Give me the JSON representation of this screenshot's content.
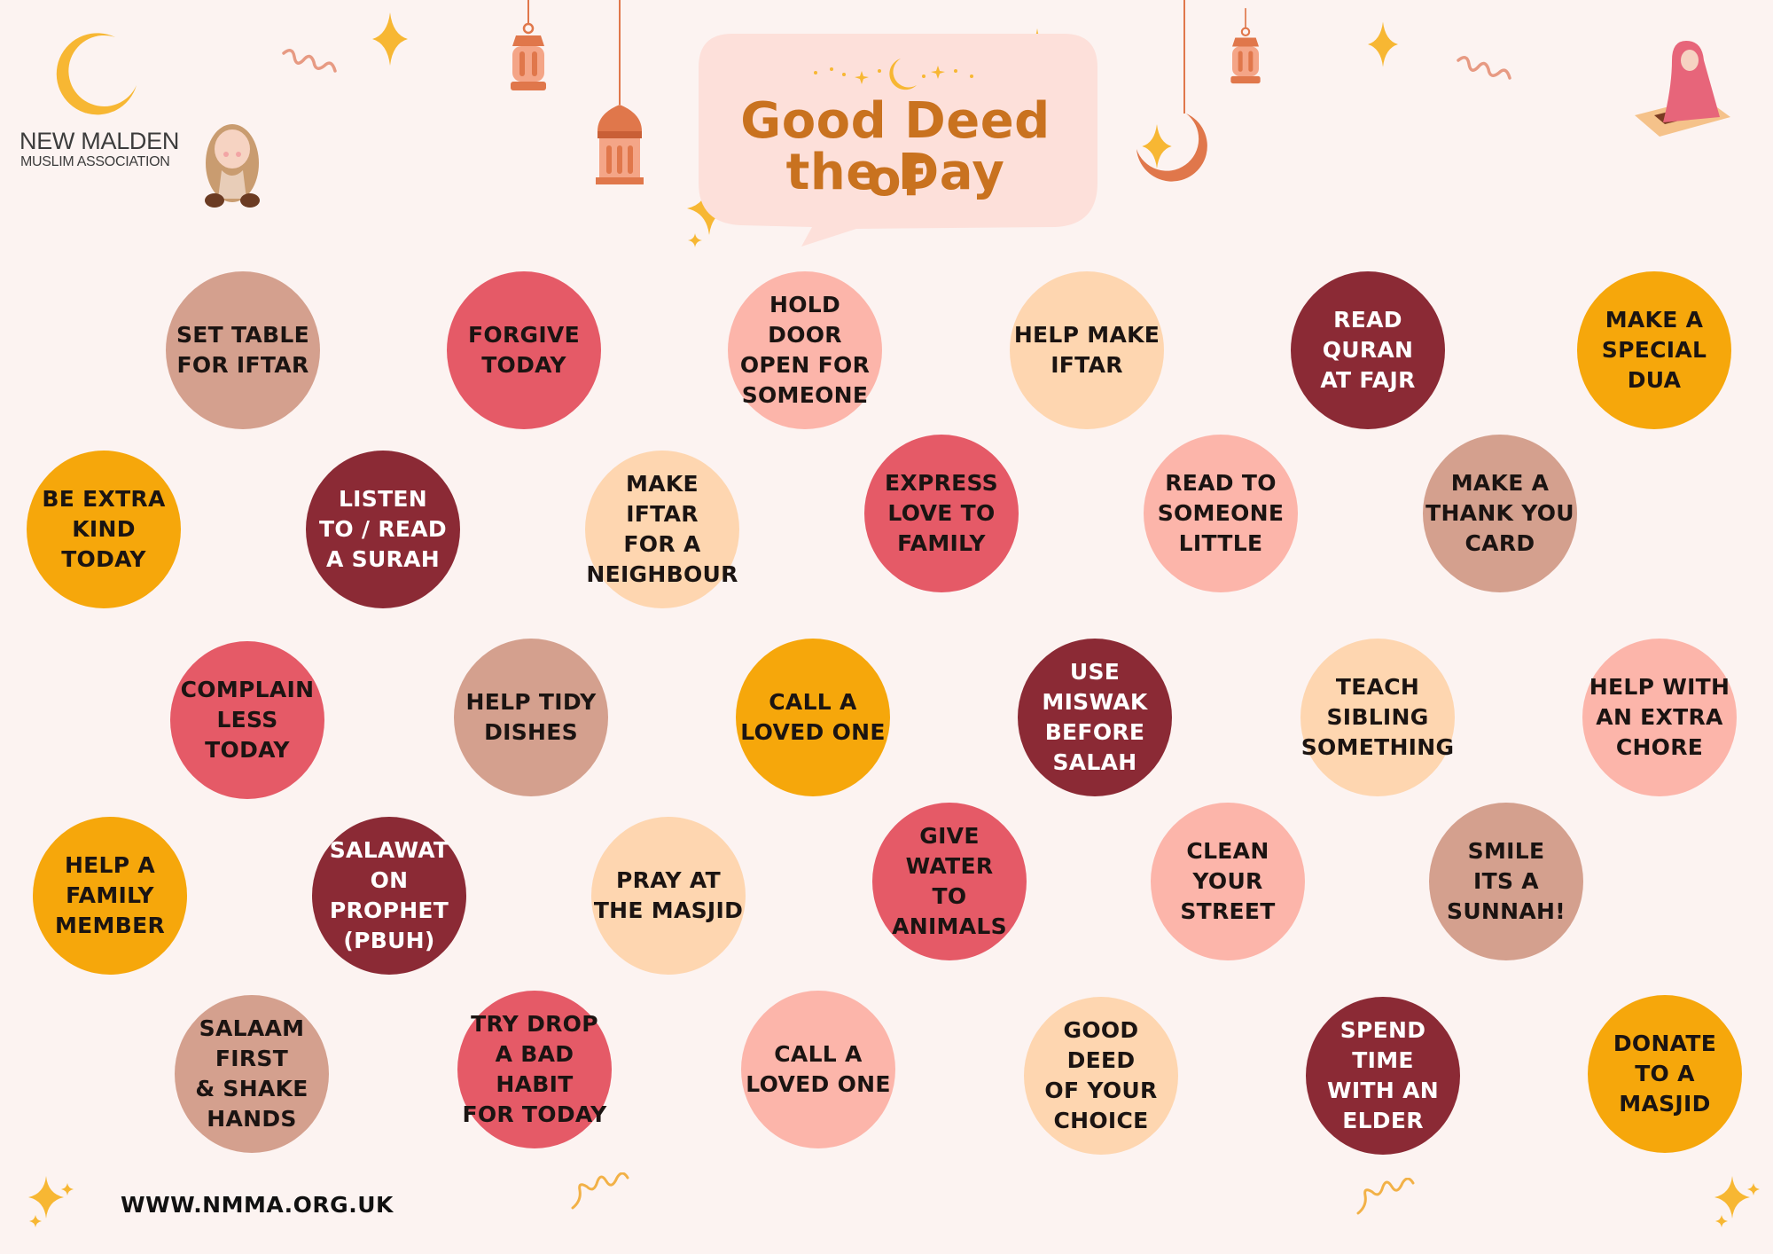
{
  "organization": {
    "name_line1": "NEW MALDEN",
    "name_line2": "MUSLIM ASSOCIATION"
  },
  "title": {
    "line1": "Good Deed of",
    "line2": "the Day"
  },
  "website": "WWW.NMMA.ORG.UK",
  "colors": {
    "background": "#fcf3f1",
    "title": "#c9721f",
    "speech_bubble": "#fde0da",
    "tan": "#d4a08e",
    "coral": "#e55a67",
    "pink": "#fcb5aa",
    "peach": "#fed6b0",
    "maroon": "#8b2a35",
    "amber": "#f6a70b",
    "sparkle": "#f7b733",
    "lantern": "#e0774b"
  },
  "deeds": [
    {
      "lines": [
        "SET TABLE",
        "FOR IFTAR"
      ],
      "color": "tan"
    },
    {
      "lines": [
        "FORGIVE",
        "TODAY"
      ],
      "color": "coral"
    },
    {
      "lines": [
        "HOLD DOOR",
        "OPEN FOR",
        "SOMEONE"
      ],
      "color": "pink"
    },
    {
      "lines": [
        "HELP MAKE",
        "IFTAR"
      ],
      "color": "peach"
    },
    {
      "lines": [
        "READ",
        "QURAN",
        "AT FAJR"
      ],
      "color": "maroon"
    },
    {
      "lines": [
        "MAKE A",
        "SPECIAL",
        "DUA"
      ],
      "color": "amber"
    },
    {
      "lines": [
        "BE EXTRA",
        "KIND",
        "TODAY"
      ],
      "color": "amber"
    },
    {
      "lines": [
        "LISTEN",
        "TO / READ",
        "A SURAH"
      ],
      "color": "maroon"
    },
    {
      "lines": [
        "MAKE IFTAR",
        "FOR A",
        "NEIGHBOUR"
      ],
      "color": "peach"
    },
    {
      "lines": [
        "EXPRESS",
        "LOVE TO",
        "FAMILY"
      ],
      "color": "coral"
    },
    {
      "lines": [
        "READ TO",
        "SOMEONE",
        "LITTLE"
      ],
      "color": "pink"
    },
    {
      "lines": [
        "MAKE A",
        "THANK YOU",
        "CARD"
      ],
      "color": "tan"
    },
    {
      "lines": [
        "COMPLAIN",
        "LESS",
        "TODAY"
      ],
      "color": "coral"
    },
    {
      "lines": [
        "HELP TIDY",
        "DISHES"
      ],
      "color": "tan"
    },
    {
      "lines": [
        "CALL A",
        "LOVED ONE"
      ],
      "color": "amber"
    },
    {
      "lines": [
        "USE MISWAK",
        "BEFORE",
        "SALAH"
      ],
      "color": "maroon"
    },
    {
      "lines": [
        "TEACH",
        "SIBLING",
        "SOMETHING"
      ],
      "color": "peach"
    },
    {
      "lines": [
        "HELP WITH",
        "AN EXTRA",
        "CHORE"
      ],
      "color": "pink"
    },
    {
      "lines": [
        "HELP A",
        "FAMILY",
        "MEMBER"
      ],
      "color": "amber"
    },
    {
      "lines": [
        "SALAWAT",
        "ON PROPHET",
        "(PBUH)"
      ],
      "color": "maroon"
    },
    {
      "lines": [
        "PRAY AT",
        "THE MASJID"
      ],
      "color": "peach"
    },
    {
      "lines": [
        "GIVE WATER",
        "TO ANIMALS"
      ],
      "color": "coral"
    },
    {
      "lines": [
        "CLEAN",
        "YOUR",
        "STREET"
      ],
      "color": "pink"
    },
    {
      "lines": [
        "SMILE",
        "ITS A",
        "SUNNAH!"
      ],
      "color": "tan"
    },
    {
      "lines": [
        "SALAAM",
        "FIRST",
        "& SHAKE",
        "HANDS"
      ],
      "color": "tan"
    },
    {
      "lines": [
        "TRY DROP",
        "A BAD HABIT",
        "FOR TODAY"
      ],
      "color": "coral"
    },
    {
      "lines": [
        "CALL A",
        "LOVED ONE"
      ],
      "color": "pink"
    },
    {
      "lines": [
        "GOOD DEED",
        "OF YOUR",
        "CHOICE"
      ],
      "color": "peach"
    },
    {
      "lines": [
        "SPEND TIME",
        "WITH AN",
        "ELDER"
      ],
      "color": "maroon"
    },
    {
      "lines": [
        "DONATE",
        "TO A",
        "MASJID"
      ],
      "color": "amber"
    }
  ]
}
